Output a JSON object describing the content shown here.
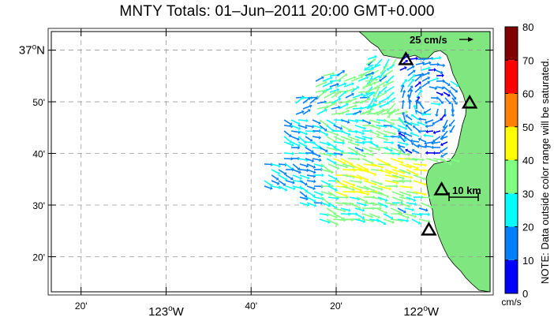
{
  "title": "MNTY Totals: 01–Jun–2011 20:00 GMT+0.000",
  "lat_labels": [
    {
      "label": "37",
      "deg": "o",
      "suffix": "N",
      "lat": 37.0,
      "major": true
    },
    {
      "label": "50'",
      "lat": 36.8333,
      "major": false
    },
    {
      "label": "40'",
      "lat": 36.6667,
      "major": false
    },
    {
      "label": "30'",
      "lat": 36.5,
      "major": false
    },
    {
      "label": "20'",
      "lat": 36.3333,
      "major": false
    }
  ],
  "lon_labels": [
    {
      "label": "20'",
      "lon": -123.3333,
      "major": false
    },
    {
      "label": "123",
      "deg": "o",
      "suffix": "W",
      "lon": -123.0,
      "major": true
    },
    {
      "label": "40'",
      "lon": -122.6667,
      "major": false
    },
    {
      "label": "20'",
      "lon": -122.3333,
      "major": false
    },
    {
      "label": "122",
      "deg": "o",
      "suffix": "W",
      "lon": -122.0,
      "major": true
    }
  ],
  "map_extent": {
    "lon_min": -123.45,
    "lon_max": -121.73,
    "lat_min": 36.22,
    "lat_max": 37.06
  },
  "reference_vector": {
    "label": "25 cm/s",
    "speed": 25
  },
  "scale_bar": {
    "label": "10 km",
    "km": 10
  },
  "stations": [
    {
      "lon": -122.06,
      "lat": 36.97
    },
    {
      "lon": -121.81,
      "lat": 36.83
    },
    {
      "lon": -121.92,
      "lat": 36.55
    },
    {
      "lon": -121.97,
      "lat": 36.42
    }
  ],
  "colorbar": {
    "ticks": [
      "0",
      "10",
      "20",
      "30",
      "40",
      "50",
      "60",
      "70",
      "80"
    ],
    "colors": [
      "#0000ff",
      "#0080ff",
      "#00ffff",
      "#80ff80",
      "#ffff00",
      "#ff8000",
      "#ff0000",
      "#800000"
    ],
    "unit": "cm/s",
    "note": "NOTE: Data outside color range will be saturated."
  },
  "land_color": "#80e680"
}
